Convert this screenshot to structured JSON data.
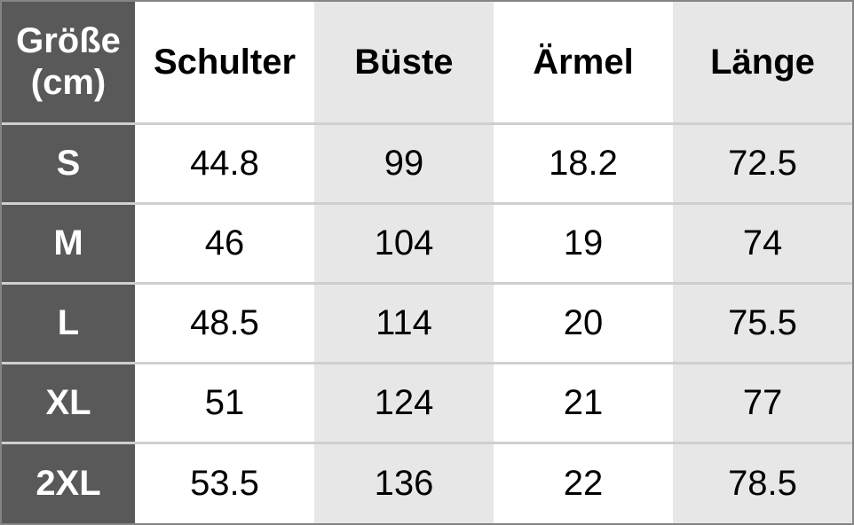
{
  "table": {
    "corner": {
      "line1": "Größe",
      "line2": "(cm)"
    },
    "columns": [
      "Schulter",
      "Büste",
      "Ärmel",
      "Länge"
    ],
    "rows": [
      {
        "size": "S",
        "values": [
          "44.8",
          "99",
          "18.2",
          "72.5"
        ]
      },
      {
        "size": "M",
        "values": [
          "46",
          "104",
          "19",
          "74"
        ]
      },
      {
        "size": "L",
        "values": [
          "48.5",
          "114",
          "20",
          "75.5"
        ]
      },
      {
        "size": "XL",
        "values": [
          "51",
          "124",
          "21",
          "77"
        ]
      },
      {
        "size": "2XL",
        "values": [
          "53.5",
          "136",
          "22",
          "78.5"
        ]
      }
    ],
    "colors": {
      "header_dark_bg": "#595959",
      "header_dark_text": "#ffffff",
      "shaded_column_bg": "#e7e7e7",
      "row_separator": "#cfcfcf",
      "outer_border": "#848484",
      "text": "#000000"
    }
  },
  "chart_data": {
    "type": "table",
    "title": "Größe (cm)",
    "columns": [
      "Größe (cm)",
      "Schulter",
      "Büste",
      "Ärmel",
      "Länge"
    ],
    "rows": [
      [
        "S",
        44.8,
        99,
        18.2,
        72.5
      ],
      [
        "M",
        46,
        104,
        19,
        74
      ],
      [
        "L",
        48.5,
        114,
        20,
        75.5
      ],
      [
        "XL",
        51,
        124,
        21,
        77
      ],
      [
        "2XL",
        53.5,
        136,
        22,
        78.5
      ]
    ]
  }
}
